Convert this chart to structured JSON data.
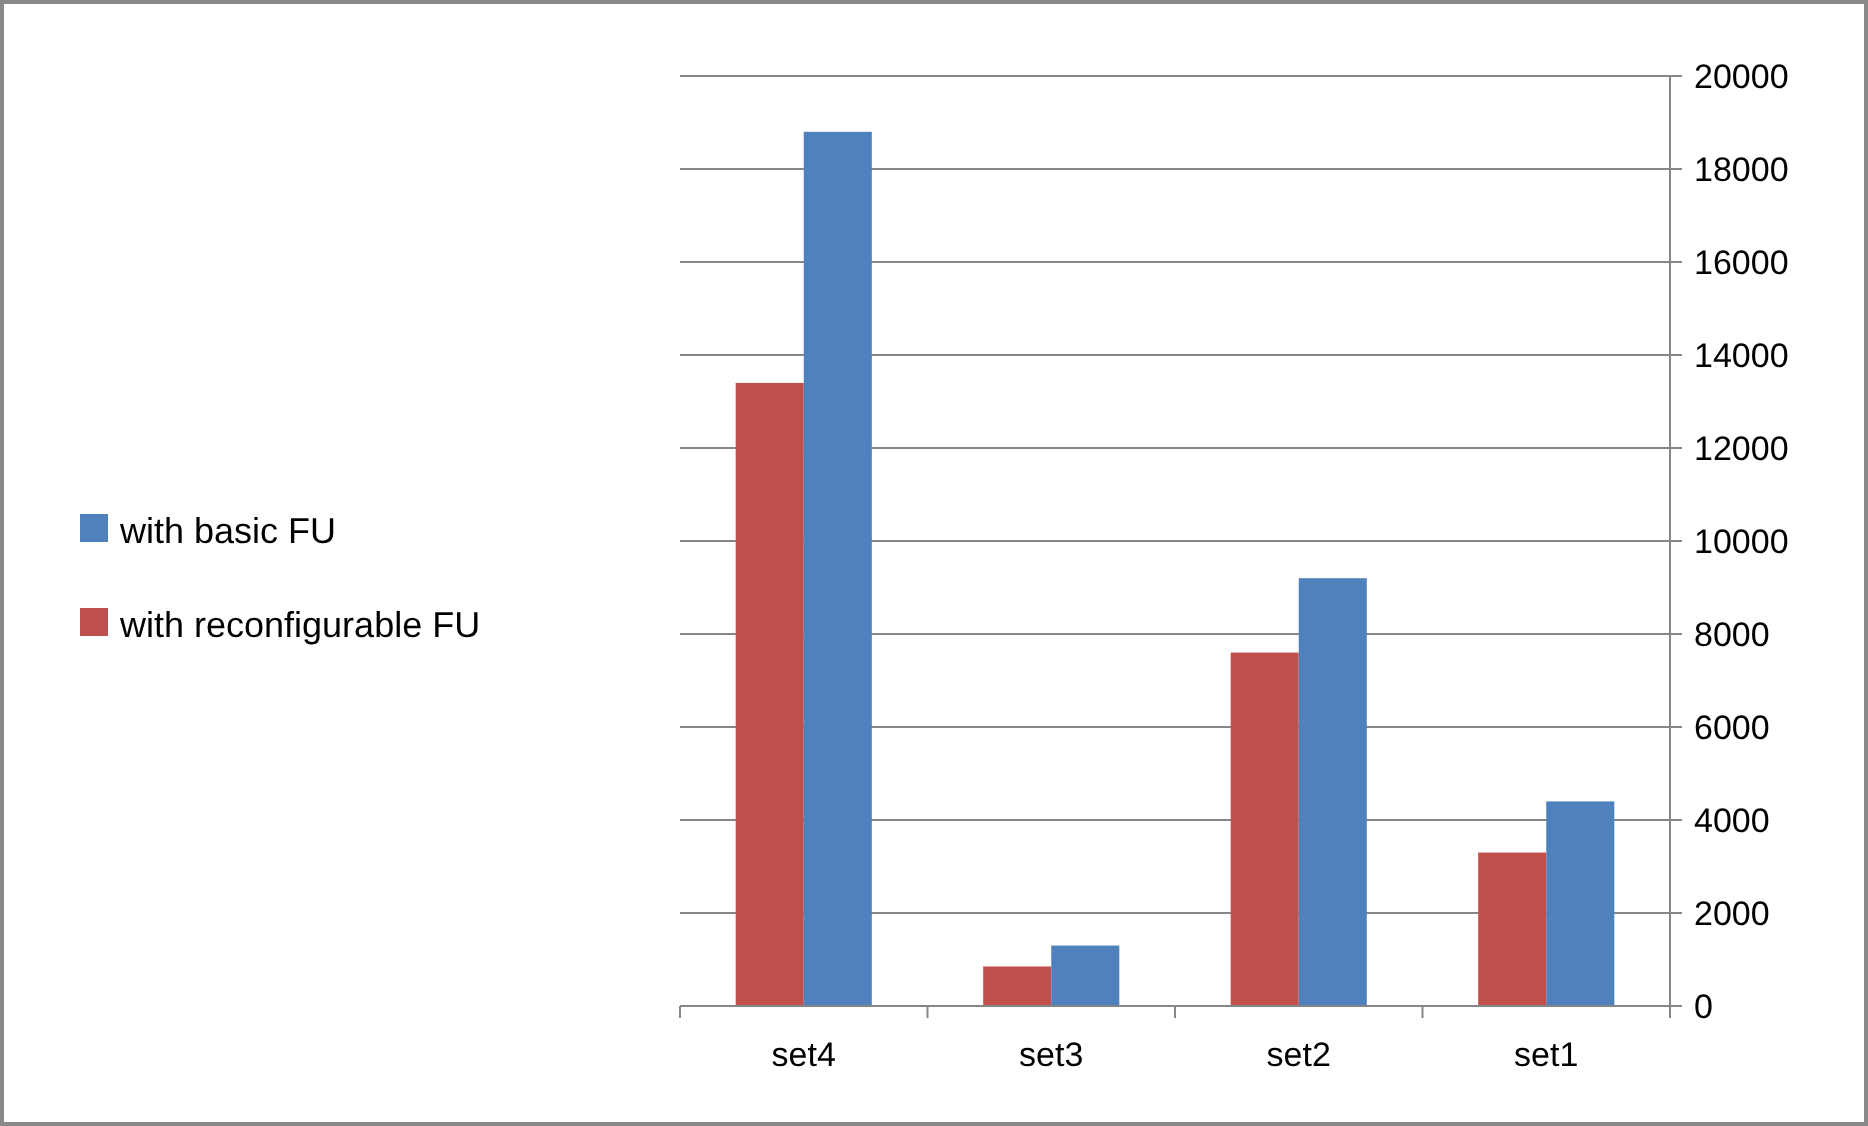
{
  "chart_data": {
    "type": "bar",
    "categories": [
      "set4",
      "set3",
      "set2",
      "set1"
    ],
    "series": [
      {
        "name": "with reconfigurable FU",
        "color": "#c0504d",
        "values": [
          13400,
          850,
          7600,
          3300
        ]
      },
      {
        "name": "with basic FU",
        "color": "#4f81bd",
        "values": [
          18800,
          1300,
          9200,
          4400
        ]
      }
    ],
    "ylim": [
      0,
      20000
    ],
    "yticks": [
      0,
      2000,
      4000,
      6000,
      8000,
      10000,
      12000,
      14000,
      16000,
      18000,
      20000
    ],
    "grid": "y",
    "legend": "left"
  }
}
